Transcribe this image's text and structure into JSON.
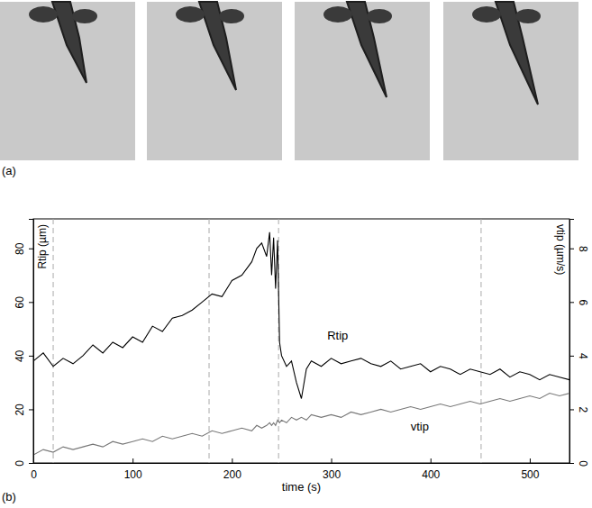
{
  "panel_a": {
    "label": "(a)"
  },
  "chart_data": {
    "type": "line",
    "panel_label": "(b)",
    "x_label": "time (s)",
    "y_label": "Rtip (µm)",
    "y2_label": "vtip (µm/s)",
    "x": [
      0,
      10,
      20,
      30,
      40,
      50,
      60,
      70,
      80,
      90,
      100,
      110,
      120,
      130,
      140,
      150,
      160,
      170,
      180,
      190,
      200,
      210,
      220,
      225,
      230,
      235,
      238,
      240,
      242,
      244,
      246,
      248,
      250,
      255,
      260,
      265,
      270,
      275,
      280,
      290,
      300,
      310,
      320,
      330,
      340,
      350,
      360,
      370,
      380,
      390,
      400,
      410,
      420,
      430,
      440,
      450,
      460,
      470,
      480,
      490,
      500,
      510,
      520,
      530,
      540
    ],
    "series": [
      {
        "name": "Rtip",
        "color": "#000000",
        "label_x": 296,
        "label_y": 46,
        "values": [
          38,
          41,
          36,
          39,
          37,
          40,
          44,
          41,
          45,
          43,
          47,
          45,
          51,
          49,
          54,
          55,
          57,
          60,
          63,
          62,
          68,
          70,
          75,
          80,
          82,
          77,
          86,
          70,
          84,
          65,
          83,
          45,
          40,
          36,
          38,
          30,
          24,
          35,
          38,
          36,
          39,
          37,
          38,
          39,
          37,
          36,
          38,
          35,
          36,
          37,
          34,
          36,
          35,
          33,
          35,
          34,
          33,
          35,
          32,
          34,
          33,
          31,
          33,
          32,
          31
        ]
      },
      {
        "name": "vtip",
        "color": "#777777",
        "axis": "y2",
        "label_x": 380,
        "label_y": 1.2,
        "values": [
          0.3,
          0.5,
          0.4,
          0.6,
          0.5,
          0.6,
          0.7,
          0.6,
          0.8,
          0.7,
          0.8,
          0.9,
          0.8,
          1.0,
          0.9,
          1.0,
          1.1,
          1.0,
          1.2,
          1.1,
          1.2,
          1.3,
          1.2,
          1.4,
          1.3,
          1.4,
          1.5,
          1.4,
          1.5,
          1.4,
          1.6,
          1.5,
          1.6,
          1.5,
          1.7,
          1.6,
          1.7,
          1.6,
          1.8,
          1.7,
          1.8,
          1.7,
          1.9,
          1.8,
          1.9,
          2.0,
          1.9,
          2.0,
          2.1,
          2.0,
          2.1,
          2.2,
          2.1,
          2.2,
          2.3,
          2.2,
          2.3,
          2.4,
          2.3,
          2.4,
          2.5,
          2.4,
          2.6,
          2.5,
          2.6
        ]
      }
    ],
    "vlines": [
      20,
      177,
      247,
      451
    ],
    "xlim": [
      0,
      540
    ],
    "ylim": [
      0,
      91
    ],
    "y2lim": [
      0,
      9.1
    ],
    "xticks": [
      0,
      100,
      200,
      300,
      400,
      500
    ],
    "yticks": [
      0,
      20,
      40,
      60,
      80
    ],
    "y2ticks": [
      0,
      2,
      4,
      6,
      8
    ],
    "grid": false
  }
}
